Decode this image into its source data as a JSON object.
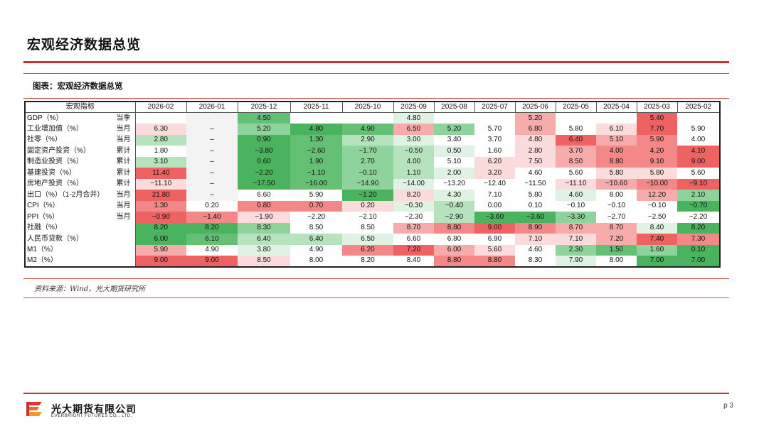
{
  "page": {
    "title": "宏观经济数据总览",
    "page_number": "p 3"
  },
  "figure": {
    "caption": "图表：宏观经济数据总览",
    "source": "资料来源：Wind，光大期货研究所"
  },
  "brand": {
    "name_cn": "光大期货有限公司",
    "name_en": "EVERBRIGHT FUTURES CO., LTD."
  },
  "colors": {
    "accent_red": "#d82e2b",
    "r1": "#fbdbdb",
    "r2": "#f7abab",
    "r3": "#f48787",
    "r4": "#ef6262",
    "g1": "#dff2e3",
    "g2": "#b6e2be",
    "g3": "#8fd39c",
    "g4": "#63c074",
    "g5": "#4ab35e"
  },
  "table": {
    "header": [
      "宏观指标",
      "2026-02",
      "2026-01",
      "2025-12",
      "2025-11",
      "2025-10",
      "2025-09",
      "2025-08",
      "2025-07",
      "2025-06",
      "2025-05",
      "2025-04",
      "2025-03",
      "2025-02"
    ],
    "rows": [
      {
        "name": "GDP（%）",
        "freq": "当季",
        "cells": [
          [
            "",
            ""
          ],
          [
            "",
            "grey"
          ],
          [
            "4.50",
            "g4"
          ],
          [
            "",
            ""
          ],
          [
            "",
            ""
          ],
          [
            "4.80",
            "g1"
          ],
          [
            "",
            ""
          ],
          [
            "",
            ""
          ],
          [
            "5.20",
            "r2"
          ],
          [
            "",
            ""
          ],
          [
            "",
            ""
          ],
          [
            "5.40",
            "r4"
          ],
          [
            "",
            ""
          ]
        ]
      },
      {
        "name": "工业增加值（%）",
        "freq": "当月",
        "cells": [
          [
            "6.30",
            "r1"
          ],
          [
            "–",
            "grey"
          ],
          [
            "5.20",
            "g3"
          ],
          [
            "4.80",
            "g5"
          ],
          [
            "4.90",
            "g4"
          ],
          [
            "6.50",
            "r2"
          ],
          [
            "5.20",
            "g3"
          ],
          [
            "5.70",
            "w"
          ],
          [
            "6.80",
            "r2"
          ],
          [
            "5.80",
            "w"
          ],
          [
            "6.10",
            "r1"
          ],
          [
            "7.70",
            "r4"
          ],
          [
            "5.90",
            "w"
          ]
        ]
      },
      {
        "name": "社零（%）",
        "freq": "当月",
        "cells": [
          [
            "2.80",
            "g2"
          ],
          [
            "–",
            "grey"
          ],
          [
            "0.90",
            "g5"
          ],
          [
            "1.30",
            "g4"
          ],
          [
            "2.90",
            "g2"
          ],
          [
            "3.00",
            "g1"
          ],
          [
            "3.40",
            "w"
          ],
          [
            "3.70",
            "w"
          ],
          [
            "4.80",
            "r1"
          ],
          [
            "6.40",
            "r4"
          ],
          [
            "5.10",
            "r2"
          ],
          [
            "5.90",
            "r3"
          ],
          [
            "4.00",
            "w"
          ]
        ]
      },
      {
        "name": "固定资产投资（%）",
        "freq": "累计",
        "cells": [
          [
            "1.80",
            "w"
          ],
          [
            "–",
            "grey"
          ],
          [
            "−3.80",
            "g5"
          ],
          [
            "−2.60",
            "g4"
          ],
          [
            "−1.70",
            "g3"
          ],
          [
            "−0.50",
            "g2"
          ],
          [
            "0.50",
            "g1"
          ],
          [
            "1.60",
            "w"
          ],
          [
            "2.80",
            "r1"
          ],
          [
            "3.70",
            "r2"
          ],
          [
            "4.00",
            "r3"
          ],
          [
            "4.20",
            "r3"
          ],
          [
            "4.10",
            "r4"
          ]
        ]
      },
      {
        "name": "制造业投资（%）",
        "freq": "累计",
        "cells": [
          [
            "3.10",
            "g2"
          ],
          [
            "–",
            "grey"
          ],
          [
            "0.60",
            "g5"
          ],
          [
            "1.90",
            "g4"
          ],
          [
            "2.70",
            "g3"
          ],
          [
            "4.00",
            "g2"
          ],
          [
            "5.10",
            "w"
          ],
          [
            "6.20",
            "r1"
          ],
          [
            "7.50",
            "r1"
          ],
          [
            "8.50",
            "r2"
          ],
          [
            "8.80",
            "r3"
          ],
          [
            "9.10",
            "r3"
          ],
          [
            "9.00",
            "r4"
          ]
        ]
      },
      {
        "name": "基建投资（%）",
        "freq": "累计",
        "cells": [
          [
            "11.40",
            "r4"
          ],
          [
            "–",
            "grey"
          ],
          [
            "−2.20",
            "g5"
          ],
          [
            "−1.10",
            "g4"
          ],
          [
            "−0.10",
            "g3"
          ],
          [
            "1.10",
            "g2"
          ],
          [
            "2.00",
            "g1"
          ],
          [
            "3.20",
            "r1"
          ],
          [
            "4.60",
            "w"
          ],
          [
            "5.60",
            "w"
          ],
          [
            "5.80",
            "r1"
          ],
          [
            "5.80",
            "r1"
          ],
          [
            "5.60",
            "w"
          ]
        ]
      },
      {
        "name": "房地产投资（%）",
        "freq": "累计",
        "cells": [
          [
            "−11.10",
            "r1"
          ],
          [
            "–",
            "grey"
          ],
          [
            "−17.50",
            "g5"
          ],
          [
            "−16.00",
            "g4"
          ],
          [
            "−14.90",
            "g3"
          ],
          [
            "−14.00",
            "g1"
          ],
          [
            "−13.20",
            "w"
          ],
          [
            "−12.40",
            "w"
          ],
          [
            "−11.50",
            "w"
          ],
          [
            "−11.10",
            "r1"
          ],
          [
            "−10.60",
            "r2"
          ],
          [
            "−10.00",
            "r3"
          ],
          [
            "−9.10",
            "r4"
          ]
        ]
      },
      {
        "name": "出口（%）（1-2月合并）",
        "freq": "当月",
        "cells": [
          [
            "21.80",
            "r4"
          ],
          [
            "–",
            "grey"
          ],
          [
            "6.60",
            "w"
          ],
          [
            "5.90",
            "w"
          ],
          [
            "−1.20",
            "g5"
          ],
          [
            "8.20",
            "r1"
          ],
          [
            "4.30",
            "g1"
          ],
          [
            "7.10",
            "w"
          ],
          [
            "5.80",
            "w"
          ],
          [
            "4.60",
            "g1"
          ],
          [
            "8.00",
            "w"
          ],
          [
            "12.20",
            "r2"
          ],
          [
            "2.10",
            "g3"
          ]
        ]
      },
      {
        "name": "CPI（%）",
        "freq": "当月",
        "cells": [
          [
            "1.30",
            "r3"
          ],
          [
            "0.20",
            "w"
          ],
          [
            "0.80",
            "r3"
          ],
          [
            "0.70",
            "r3"
          ],
          [
            "0.20",
            "r1"
          ],
          [
            "−0.30",
            "g1"
          ],
          [
            "−0.40",
            "g2"
          ],
          [
            "0.00",
            "w"
          ],
          [
            "0.10",
            "w"
          ],
          [
            "−0.10",
            "w"
          ],
          [
            "−0.10",
            "w"
          ],
          [
            "−0.10",
            "w"
          ],
          [
            "−0.70",
            "g5"
          ]
        ]
      },
      {
        "name": "PPI（%）",
        "freq": "当月",
        "cells": [
          [
            "−0.90",
            "r4"
          ],
          [
            "−1.40",
            "r3"
          ],
          [
            "−1.90",
            "r1"
          ],
          [
            "−2.20",
            "w"
          ],
          [
            "−2.10",
            "w"
          ],
          [
            "−2.30",
            "w"
          ],
          [
            "−2.90",
            "g2"
          ],
          [
            "−3.60",
            "g5"
          ],
          [
            "−3.60",
            "g5"
          ],
          [
            "−3.30",
            "g3"
          ],
          [
            "−2.70",
            "w"
          ],
          [
            "−2.50",
            "w"
          ],
          [
            "−2.20",
            "w"
          ]
        ]
      },
      {
        "name": "社融（%）",
        "freq": "",
        "cells": [
          [
            "8.20",
            "g5"
          ],
          [
            "8.20",
            "g5"
          ],
          [
            "8.30",
            "g3"
          ],
          [
            "8.50",
            "w"
          ],
          [
            "8.50",
            "w"
          ],
          [
            "8.70",
            "r2"
          ],
          [
            "8.80",
            "r3"
          ],
          [
            "9.00",
            "r4"
          ],
          [
            "8.90",
            "r3"
          ],
          [
            "8.70",
            "r2"
          ],
          [
            "8.70",
            "r2"
          ],
          [
            "8.40",
            "g1"
          ],
          [
            "8.20",
            "g5"
          ]
        ]
      },
      {
        "name": "人民币贷款（%）",
        "freq": "",
        "cells": [
          [
            "6.00",
            "g5"
          ],
          [
            "6.10",
            "g4"
          ],
          [
            "6.40",
            "g2"
          ],
          [
            "6.40",
            "g2"
          ],
          [
            "6.50",
            "g1"
          ],
          [
            "6.60",
            "w"
          ],
          [
            "6.80",
            "w"
          ],
          [
            "6.90",
            "w"
          ],
          [
            "7.10",
            "r1"
          ],
          [
            "7.10",
            "r1"
          ],
          [
            "7.20",
            "r2"
          ],
          [
            "7.40",
            "r4"
          ],
          [
            "7.30",
            "r3"
          ]
        ]
      },
      {
        "name": "M1（%）",
        "freq": "",
        "cells": [
          [
            "5.90",
            "r2"
          ],
          [
            "4.90",
            "w"
          ],
          [
            "3.80",
            "g1"
          ],
          [
            "4.90",
            "w"
          ],
          [
            "6.20",
            "r3"
          ],
          [
            "7.20",
            "r4"
          ],
          [
            "6.00",
            "r2"
          ],
          [
            "5.60",
            "r1"
          ],
          [
            "4.60",
            "w"
          ],
          [
            "2.30",
            "g3"
          ],
          [
            "1.50",
            "g4"
          ],
          [
            "1.60",
            "g3"
          ],
          [
            "0.10",
            "g5"
          ]
        ]
      },
      {
        "name": "M2（%）",
        "freq": "",
        "cells": [
          [
            "9.00",
            "r4"
          ],
          [
            "9.00",
            "r4"
          ],
          [
            "8.50",
            "r1"
          ],
          [
            "8.00",
            "w"
          ],
          [
            "8.20",
            "w"
          ],
          [
            "8.40",
            "w"
          ],
          [
            "8.80",
            "r3"
          ],
          [
            "8.80",
            "r3"
          ],
          [
            "8.30",
            "w"
          ],
          [
            "7.90",
            "g1"
          ],
          [
            "8.00",
            "w"
          ],
          [
            "7.00",
            "g5"
          ],
          [
            "7.00",
            "g5"
          ]
        ]
      }
    ]
  }
}
